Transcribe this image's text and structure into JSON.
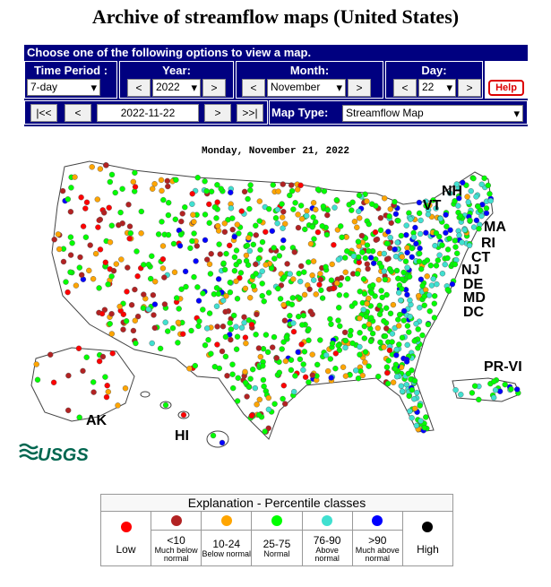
{
  "header": {
    "title": "Archive of streamflow maps (United States)"
  },
  "controls": {
    "instruction": "Choose one of the following options to view a map.",
    "time_period": {
      "label": "Time Period :",
      "value": "7-day"
    },
    "year": {
      "label": "Year:",
      "prev": "<",
      "value": "2022",
      "next": ">"
    },
    "month": {
      "label": "Month:",
      "prev": "<",
      "value": "November",
      "next": ">"
    },
    "day": {
      "label": "Day:",
      "prev": "<",
      "value": "22",
      "next": ">"
    },
    "help": "Help",
    "nav": {
      "first": "|<<",
      "prev": "<",
      "date": "2022-11-22",
      "next": ">",
      "last": ">>|"
    },
    "map_type": {
      "label": "Map Type:",
      "value": "Streamflow Map"
    }
  },
  "map": {
    "date": "Monday, November 21, 2022",
    "labels": [
      "NH",
      "VT",
      "MA",
      "RI",
      "CT",
      "NJ",
      "DE",
      "MD",
      "DC",
      "PR-VI",
      "AK",
      "HI"
    ],
    "logo": "USGS"
  },
  "legend": {
    "title": "Explanation - Percentile classes",
    "classes": [
      {
        "color": "#ff0000",
        "label": "Low"
      },
      {
        "color": "#b22222",
        "range": "<10",
        "description": "Much below normal"
      },
      {
        "color": "#ffa500",
        "range": "10-24",
        "description": "Below normal"
      },
      {
        "color": "#00ff00",
        "range": "25-75",
        "description": "Normal"
      },
      {
        "color": "#40e0d0",
        "range": "76-90",
        "description": "Above normal"
      },
      {
        "color": "#0000ff",
        "range": ">90",
        "description": "Much above normal"
      },
      {
        "color": "#000000",
        "label": "High"
      }
    ]
  }
}
